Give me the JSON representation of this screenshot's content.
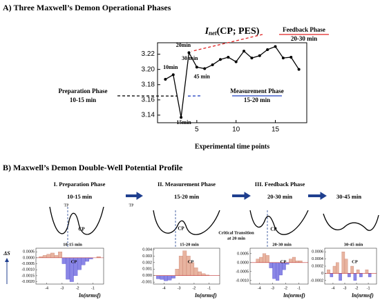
{
  "panel_a": {
    "heading": "A) Three Maxwell’s Demon Operational Phases",
    "chart_data": {
      "type": "line",
      "title": {
        "symbol": "I",
        "subscript": "net",
        "rest": "(CP; PES)"
      },
      "x": [
        1,
        2,
        3,
        4,
        5,
        6,
        7,
        8,
        9,
        10,
        11,
        12,
        13,
        14,
        15,
        16,
        17,
        18
      ],
      "series": [
        {
          "name": "I_net",
          "color": "#000000",
          "values": [
            3.187,
            3.193,
            3.137,
            3.222,
            3.203,
            3.201,
            3.206,
            3.213,
            3.216,
            3.21,
            3.224,
            3.215,
            3.218,
            3.226,
            3.23,
            3.215,
            3.216,
            3.2
          ]
        }
      ],
      "xlim": [
        0,
        19
      ],
      "xticks": [
        5,
        10,
        15
      ],
      "ylim": [
        3.13,
        3.235
      ],
      "yticks": [
        3.14,
        3.16,
        3.18,
        {
          "value": 3.2,
          "label": "3.20"
        },
        3.22
      ],
      "xlabel": "Experimental time points",
      "point_labels": [
        "10min",
        "15min",
        "20min",
        "30 min",
        "45 min"
      ],
      "phases": [
        {
          "name": "Preparation Phase",
          "time": "10-15 min",
          "color": "#000000"
        },
        {
          "name": "Measurement Phase",
          "time": "15-20 min",
          "color": "#1f3fbf"
        },
        {
          "name": "Feedback Phase",
          "time": "20-30 min",
          "color": "#e02020"
        }
      ]
    }
  },
  "panel_b": {
    "heading": "B) Maxwell’s Demon Double-Well Potential Profile",
    "phases": [
      {
        "title": "I. Preparation Phase",
        "time": "10-15 min"
      },
      {
        "title": "II. Measurement Phase",
        "time": "15-20 min"
      },
      {
        "title": "III. Feedback Phase",
        "time": "20-30 min"
      },
      {
        "time": "30-45 min"
      }
    ],
    "tp_labels": [
      "TP",
      "TP"
    ],
    "well_cp_labels": [
      "CP",
      "CP",
      "CP"
    ],
    "critical_note": [
      "Critical Transition",
      "at 20 min"
    ],
    "delta_s": "ΔS",
    "positive_color": "#e8b4a0",
    "negative_color": "#8a86e6",
    "charts": [
      {
        "type": "bar",
        "label": "10-15 min",
        "cp_label": "CP",
        "xlabel": "ln(nrmsf)",
        "xlim": [
          -4.7,
          -0.3
        ],
        "xticks": [
          -4,
          -3,
          -2,
          -1
        ],
        "ylim": [
          -0.0022,
          0.0008
        ],
        "yticks": [
          0.0005,
          {
            "value": 0,
            "label": "0.0000"
          },
          -0.0005,
          {
            "value": -0.001,
            "label": "-0.0010"
          },
          -0.0015,
          {
            "value": -0.002,
            "label": "-0.0020"
          }
        ],
        "bins": [
          -4.5,
          -4.25,
          -4,
          -3.75,
          -3.5,
          -3.25,
          -3,
          -2.75,
          -2.5,
          -2.25,
          -2,
          -1.75,
          -1.5,
          -1.25,
          -1,
          -0.75,
          -0.5
        ],
        "values": [
          0.0001,
          0.0002,
          0.0003,
          0.0004,
          0.0002,
          0.0005,
          -0.0005,
          -0.0018,
          -0.002,
          -0.0015,
          -0.001,
          -0.0006,
          -0.0003,
          -0.0001,
          0,
          0.0001
        ]
      },
      {
        "type": "bar",
        "label": "15-20 min",
        "cp_label": "CP",
        "xlabel": "ln(nrmsf)",
        "xlim": [
          -4.7,
          -0.3
        ],
        "xticks": [
          -4,
          -3,
          -2,
          -1
        ],
        "ylim": [
          -0.0013,
          0.0042
        ],
        "yticks": [
          0.004,
          0.003,
          0.002,
          0.001,
          {
            "value": 0,
            "label": "0.000"
          },
          -0.001
        ],
        "bins": [
          -4.5,
          -4.25,
          -4,
          -3.75,
          -3.5,
          -3.25,
          -3,
          -2.75,
          -2.5,
          -2.25,
          -2,
          -1.75,
          -1.5,
          -1.25,
          -1,
          -0.75,
          -0.5
        ],
        "values": [
          -0.0005,
          -0.0006,
          -0.0008,
          -0.0007,
          -0.0004,
          0.001,
          0.003,
          0.0038,
          0.003,
          0.002,
          0.0012,
          0.0006,
          0.0003,
          0.0001,
          0,
          0
        ]
      },
      {
        "type": "bar",
        "label": "20-30 min",
        "cp_label": "CP",
        "xlabel": "ln(nrmsf)",
        "xlim": [
          -4.7,
          -0.3
        ],
        "xticks": [
          -4,
          -3,
          -2,
          -1
        ],
        "ylim": [
          -0.0012,
          0.0008
        ],
        "yticks": [
          0.0005,
          {
            "value": 0,
            "label": "0.0000"
          },
          -0.0005,
          {
            "value": -0.001,
            "label": "-0.0010"
          }
        ],
        "bins": [
          -4.5,
          -4.25,
          -4,
          -3.75,
          -3.5,
          -3.25,
          -3,
          -2.75,
          -2.5,
          -2.25,
          -2,
          -1.75,
          -1.5,
          -1.25,
          -1,
          -0.75,
          -0.5
        ],
        "values": [
          0,
          0.0002,
          0.0003,
          0.0005,
          0.0004,
          -0.0003,
          -0.0009,
          -0.001,
          -0.0007,
          -0.0004,
          -0.0001,
          0.0002,
          0.0003,
          0.0001,
          0.0001,
          0
        ]
      },
      {
        "type": "bar",
        "label": "30-45 min",
        "cp_label": "CP",
        "xlabel": "ln(nrmsf)",
        "xlim": [
          -4.7,
          -0.3
        ],
        "xticks": [
          -4,
          -3,
          -2,
          -1
        ],
        "ylim": [
          -0.0003,
          0.0007
        ],
        "yticks": [
          0.0006,
          0.0004,
          0.0002,
          0,
          -0.0002
        ],
        "bins": [
          -4.5,
          -4.25,
          -4,
          -3.75,
          -3.5,
          -3.25,
          -3,
          -2.75,
          -2.5,
          -2.25,
          -2,
          -1.75,
          -1.5,
          -1.25,
          -1,
          -0.75,
          -0.5
        ],
        "values": [
          0.0001,
          -0.0001,
          0.0002,
          0.0003,
          -0.0002,
          0.0006,
          0.0004,
          -0.0001,
          0.0002,
          -0.0002,
          0.0001,
          -0.0001,
          0,
          0.0001,
          -0.0001,
          0
        ]
      }
    ]
  }
}
